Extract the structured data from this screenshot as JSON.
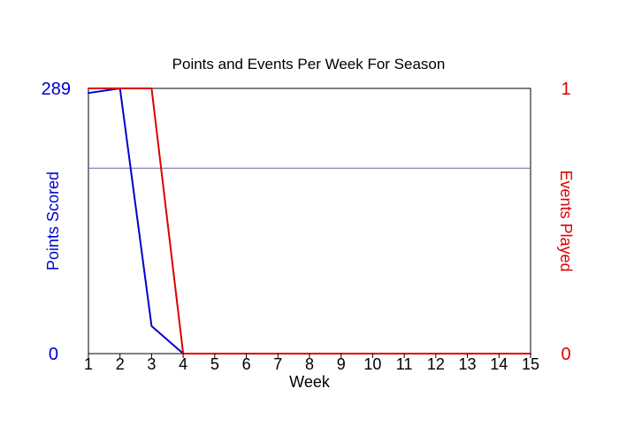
{
  "chart_data": {
    "type": "line",
    "title": "Points and Events Per Week For Season",
    "xlabel": "Week",
    "ylabel_left": "Points Scored",
    "ylabel_right": "Events Played",
    "x": [
      1,
      2,
      3,
      4,
      5,
      6,
      7,
      8,
      9,
      10,
      11,
      12,
      13,
      14,
      15
    ],
    "xlim": [
      1,
      15
    ],
    "ylim_left": [
      0,
      289
    ],
    "ylim_right": [
      0,
      1
    ],
    "left_tick_labels": [
      "289",
      "0"
    ],
    "right_tick_labels": [
      "1",
      "0"
    ],
    "reference_line_left": 202,
    "series": [
      {
        "name": "Points Scored",
        "axis": "left",
        "color": "#0000cc",
        "values": [
          284,
          289,
          30,
          0,
          0,
          0,
          0,
          0,
          0,
          0,
          0,
          0,
          0,
          0,
          0
        ]
      },
      {
        "name": "Events Played",
        "axis": "right",
        "color": "#dd0000",
        "values": [
          1,
          1,
          1,
          0,
          0,
          0,
          0,
          0,
          0,
          0,
          0,
          0,
          0,
          0,
          0
        ]
      }
    ],
    "reference_line_color": "#6666aa",
    "grid": false
  }
}
